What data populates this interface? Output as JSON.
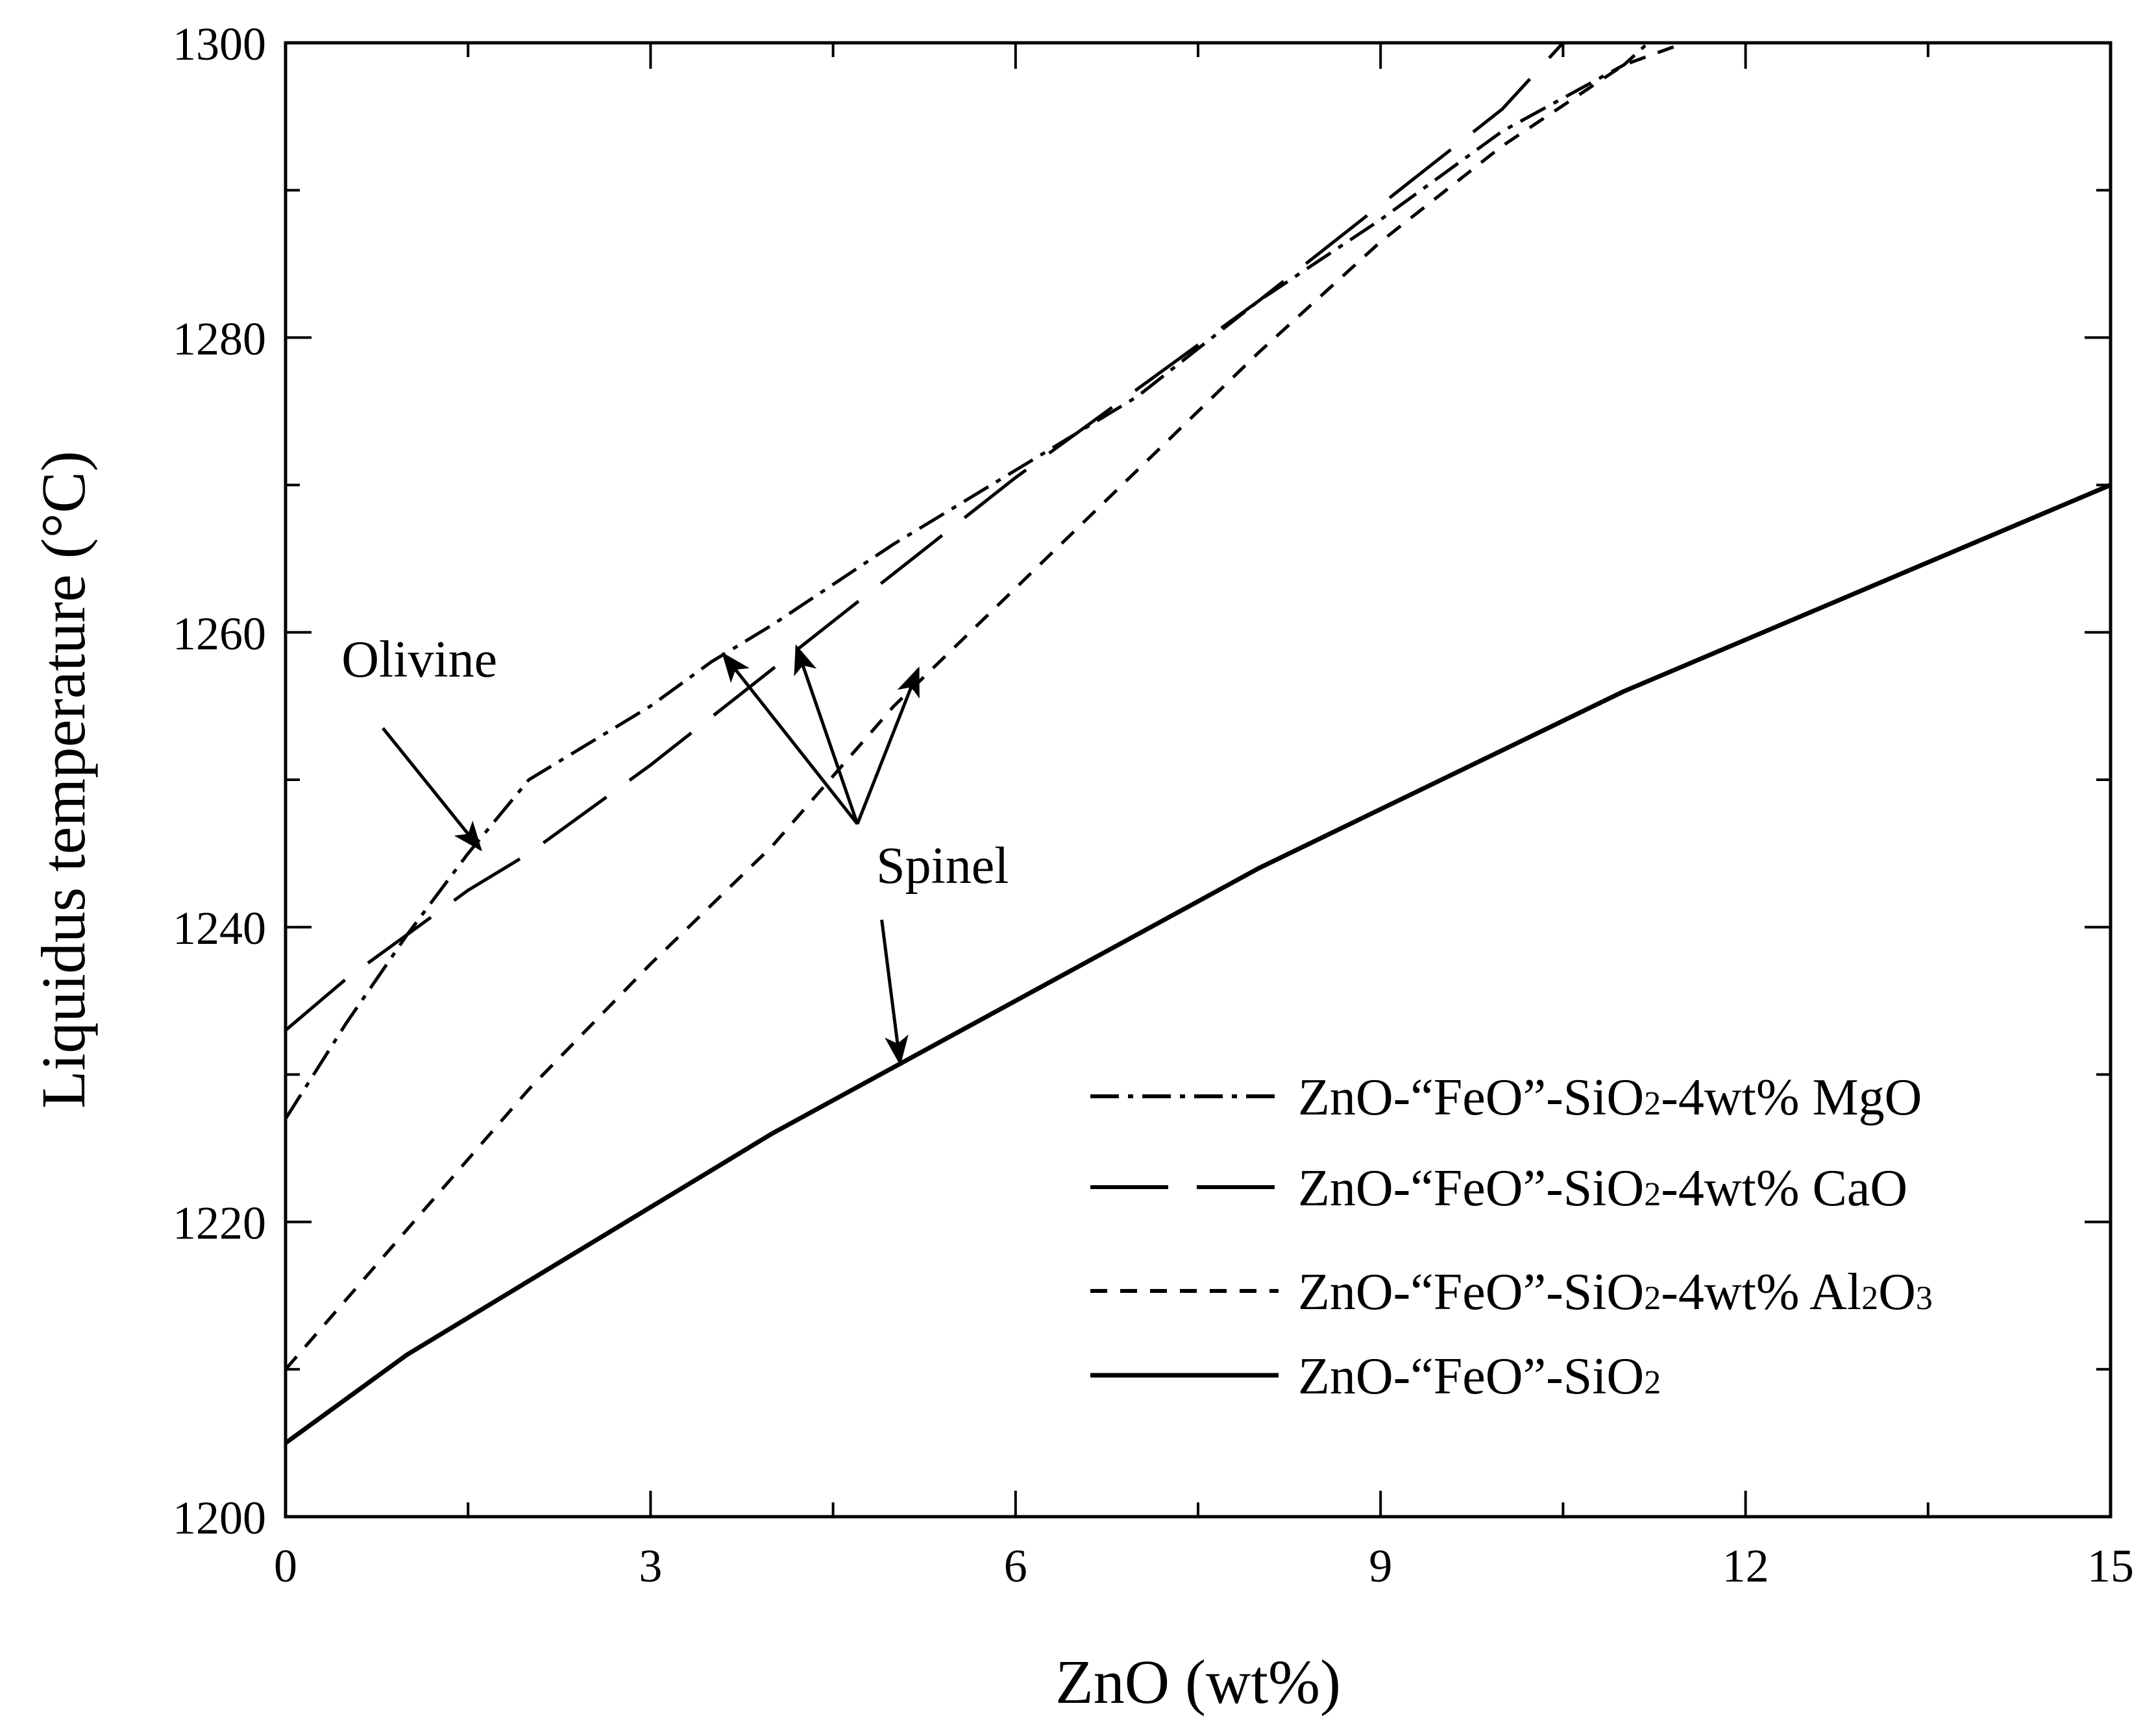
{
  "chart_data": {
    "type": "line",
    "title": "",
    "xlabel": "ZnO (wt%)",
    "ylabel": "Liquidus temperature (°C)",
    "xlim": [
      0,
      15
    ],
    "ylim": [
      1200,
      1300
    ],
    "xticks": [
      0,
      3,
      6,
      9,
      12,
      15
    ],
    "yticks": [
      1200,
      1220,
      1240,
      1260,
      1280,
      1300
    ],
    "grid": false,
    "legend_position": "bottom-right",
    "series": [
      {
        "name": "ZnO-“FeO”-SiO₂-4wt% MgO",
        "name_parts": [
          {
            "t": "ZnO-“FeO”-SiO",
            "sub": false
          },
          {
            "t": "2",
            "sub": true
          },
          {
            "t": "-4wt% MgO",
            "sub": false
          }
        ],
        "style": "dashdot",
        "color": "#000000",
        "x": [
          0,
          0.5,
          1.0,
          1.5,
          2.0,
          3.0,
          3.5,
          4.0,
          5.0,
          6.0,
          7.0,
          8.0,
          9.0,
          10.0,
          11.0,
          11.2
        ],
        "y": [
          1227,
          1233.5,
          1239.5,
          1245,
          1250,
          1255,
          1258,
          1260.5,
          1266,
          1271,
          1276,
          1282.5,
          1288,
          1294,
          1298.5,
          1300
        ]
      },
      {
        "name": "ZnO-“FeO”-SiO₂-4wt% CaO",
        "name_parts": [
          {
            "t": "ZnO-“FeO”-SiO",
            "sub": false
          },
          {
            "t": "2",
            "sub": true
          },
          {
            "t": "-4wt% CaO",
            "sub": false
          }
        ],
        "style": "longdash",
        "color": "#000000",
        "x": [
          0,
          0.5,
          1.0,
          1.5,
          2.0,
          3.0,
          4.0,
          5.0,
          6.0,
          7.0,
          8.0,
          9.0,
          10.0,
          10.5
        ],
        "y": [
          1233,
          1236.5,
          1239.5,
          1242.5,
          1245,
          1251,
          1257.5,
          1264,
          1270.5,
          1276.5,
          1282.5,
          1289,
          1295.5,
          1300
        ]
      },
      {
        "name": "ZnO-“FeO”-SiO₂-4wt% Al₂O₃",
        "name_parts": [
          {
            "t": "ZnO-“FeO”-SiO",
            "sub": false
          },
          {
            "t": "2",
            "sub": true
          },
          {
            "t": "-4wt% Al",
            "sub": false
          },
          {
            "t": "2",
            "sub": true
          },
          {
            "t": "O",
            "sub": false
          },
          {
            "t": "3",
            "sub": true
          }
        ],
        "style": "shortdash",
        "color": "#000000",
        "x": [
          0,
          1,
          2,
          3,
          4,
          5,
          6,
          7,
          8,
          9,
          10,
          11,
          11.5
        ],
        "y": [
          1210,
          1219.5,
          1229,
          1237.5,
          1245.5,
          1255,
          1263,
          1271,
          1279,
          1286.5,
          1293,
          1298.5,
          1300
        ]
      },
      {
        "name": "ZnO-“FeO”-SiO₂",
        "name_parts": [
          {
            "t": "ZnO-“FeO”-SiO",
            "sub": false
          },
          {
            "t": "2",
            "sub": true
          }
        ],
        "style": "solid",
        "color": "#000000",
        "x": [
          0,
          1,
          2,
          3,
          4,
          5,
          6,
          7,
          8,
          9,
          10,
          11,
          12,
          13,
          14,
          15
        ],
        "y": [
          1205,
          1211,
          1216,
          1221,
          1226,
          1230.5,
          1235,
          1239.5,
          1244,
          1248,
          1252,
          1256,
          1259.5,
          1263,
          1266.5,
          1270
        ]
      }
    ],
    "annotations": [
      {
        "text": "Olivine",
        "x": 1.1,
        "y": 1257,
        "arrows": [
          {
            "from": [
              0.8,
              1253.5
            ],
            "to": [
              1.6,
              1245.3
            ]
          }
        ]
      },
      {
        "text": "Spinel",
        "x": 5.4,
        "y": 1243,
        "arrows": [
          {
            "from": [
              4.7,
              1247
            ],
            "to": [
              3.6,
              1258.5
            ]
          },
          {
            "from": [
              4.7,
              1247
            ],
            "to": [
              4.2,
              1259
            ]
          },
          {
            "from": [
              4.7,
              1247
            ],
            "to": [
              5.2,
              1257.5
            ]
          },
          {
            "from": [
              4.9,
              1240.5
            ],
            "to": [
              5.05,
              1230.8
            ]
          }
        ]
      }
    ]
  }
}
